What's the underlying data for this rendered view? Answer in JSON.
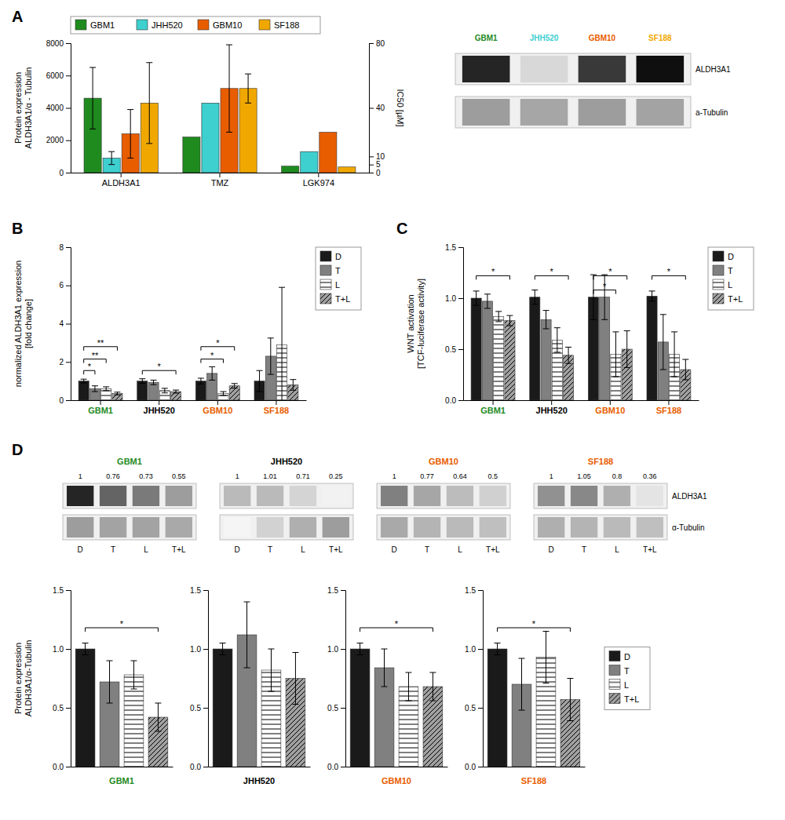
{
  "chart_data": [
    {
      "type": "bar",
      "title": "A",
      "categories": [
        "ALDH3A1",
        "TMZ",
        "LGK974"
      ],
      "series": [
        {
          "name": "GBM1",
          "color": "#1f8b1f",
          "values": [
            4600,
            2200,
            400
          ],
          "errors": [
            1900,
            0,
            0
          ]
        },
        {
          "name": "JHH520",
          "color": "#3ecfcf",
          "values": [
            900,
            4300,
            1300
          ],
          "errors": [
            400,
            0,
            0
          ]
        },
        {
          "name": "GBM10",
          "color": "#e85d00",
          "values": [
            2400,
            5200,
            2500
          ],
          "errors": [
            1500,
            2700,
            0
          ]
        },
        {
          "name": "SF188",
          "color": "#f0a800",
          "values": [
            4300,
            5200,
            350
          ],
          "errors": [
            2500,
            900,
            0
          ]
        }
      ],
      "ylim": [
        0,
        8000
      ],
      "yticks": [
        0,
        2000,
        4000,
        6000,
        8000
      ],
      "ylabel": "Protein expression\nALDH3A1/α - Tubulin",
      "y2lim": [
        0,
        80
      ],
      "y2ticks": [
        0,
        5,
        10,
        40,
        80
      ],
      "y2label": "IC50 [µM]",
      "legend": "top"
    },
    {
      "type": "blot",
      "lanes": [
        "GBM1",
        "JHH520",
        "GBM10",
        "SF188"
      ],
      "colors": [
        "#1f8b1f",
        "#3ecfcf",
        "#e85d00",
        "#f0a800"
      ],
      "row_names": [
        "ALDH3A1",
        "a-Tubulin"
      ],
      "bands": [
        [
          0.88,
          0.25,
          0.82,
          0.95
        ],
        [
          0.48,
          0.45,
          0.48,
          0.46
        ]
      ]
    },
    {
      "type": "bar",
      "title": "B",
      "categories": [
        "GBM1",
        "JHH520",
        "GBM10",
        "SF188"
      ],
      "category_colors": [
        "#1f8b1f",
        "#000000",
        "#e85d00",
        "#e85d00"
      ],
      "series": [
        {
          "name": "D",
          "color": "#1a1a1a",
          "values": [
            1.0,
            1.0,
            1.0,
            1.0
          ],
          "errors": [
            0.1,
            0.12,
            0.15,
            0.55
          ]
        },
        {
          "name": "T",
          "color": "#808080",
          "values": [
            0.6,
            0.93,
            1.4,
            2.3
          ],
          "errors": [
            0.15,
            0.12,
            0.35,
            0.95
          ]
        },
        {
          "name": "L",
          "color": "#ffffff",
          "values": [
            0.6,
            0.5,
            0.35,
            2.9
          ],
          "errors": [
            0.1,
            0.12,
            0.1,
            3.0
          ]
        },
        {
          "name": "T+L",
          "color": "#a0a0a0",
          "values": [
            0.35,
            0.45,
            0.75,
            0.8
          ],
          "errors": [
            0.07,
            0.08,
            0.12,
            0.28
          ]
        }
      ],
      "ylim": [
        0,
        8
      ],
      "yticks": [
        0,
        2,
        4,
        6,
        8
      ],
      "ylabel": "normalized ALDH3A1 expression\n[fold change]",
      "legend": "right",
      "annotations": [
        {
          "text": "*",
          "category": "GBM1",
          "from": "D",
          "to": "T",
          "y": 1.55
        },
        {
          "text": "**",
          "category": "GBM1",
          "from": "D",
          "to": "L",
          "y": 2.15
        },
        {
          "text": "**",
          "category": "GBM1",
          "from": "D",
          "to": "T+L",
          "y": 2.8
        },
        {
          "text": "*",
          "category": "JHH520",
          "from": "D",
          "to": "T+L",
          "y": 1.55
        },
        {
          "text": "*",
          "category": "GBM10",
          "from": "D",
          "to": "L",
          "y": 2.15
        },
        {
          "text": "*",
          "category": "GBM10",
          "from": "D",
          "to": "T+L",
          "y": 2.8
        }
      ]
    },
    {
      "type": "bar",
      "title": "C",
      "categories": [
        "GBM1",
        "JHH520",
        "GBM10",
        "SF188"
      ],
      "category_colors": [
        "#1f8b1f",
        "#000000",
        "#e85d00",
        "#e85d00"
      ],
      "series": [
        {
          "name": "D",
          "color": "#1a1a1a",
          "values": [
            1.0,
            1.01,
            1.01,
            1.02
          ],
          "errors": [
            0.07,
            0.07,
            0.22,
            0.05
          ]
        },
        {
          "name": "T",
          "color": "#808080",
          "values": [
            0.97,
            0.79,
            1.01,
            0.57
          ],
          "errors": [
            0.07,
            0.09,
            0.22,
            0.27
          ]
        },
        {
          "name": "L",
          "color": "#ffffff",
          "values": [
            0.82,
            0.59,
            0.45,
            0.45
          ],
          "errors": [
            0.05,
            0.12,
            0.22,
            0.22
          ]
        },
        {
          "name": "T+L",
          "color": "#a0a0a0",
          "values": [
            0.78,
            0.44,
            0.5,
            0.3
          ],
          "errors": [
            0.05,
            0.08,
            0.18,
            0.1
          ]
        }
      ],
      "ylim": [
        0,
        1.5
      ],
      "yticks": [
        {
          "value": 0,
          "label": "0.0"
        },
        0.5,
        {
          "value": 1,
          "label": "1.0"
        },
        1.5
      ],
      "ylabel": "WNT activation\n[TCF-luciferase activity]",
      "legend": "right",
      "annotations": [
        {
          "text": "*",
          "category": "GBM1",
          "from": "D",
          "to": "T+L",
          "y": 1.22
        },
        {
          "text": "*",
          "category": "JHH520",
          "from": "D",
          "to": "T+L",
          "y": 1.22
        },
        {
          "text": "*",
          "category": "GBM10",
          "from": "D",
          "to": "T+L",
          "y": 1.22
        },
        {
          "text": "*",
          "category": "SF188",
          "from": "D",
          "to": "T+L",
          "y": 1.22
        },
        {
          "text": "*",
          "category": "GBM10",
          "from": "D",
          "to": "L",
          "y": 1.08
        }
      ]
    },
    {
      "type": "blot",
      "title": "D",
      "lanes": [
        "D",
        "T",
        "L",
        "T+L"
      ],
      "row_names": [
        "ALDH3A1",
        "α-Tubulin"
      ],
      "blots": [
        {
          "name": "GBM1",
          "color": "#1f8b1f",
          "protein_values": [
            1,
            0.76,
            0.73,
            0.55
          ],
          "bands": [
            [
              0.88,
              0.68,
              0.6,
              0.48
            ],
            [
              0.48,
              0.46,
              0.46,
              0.44
            ]
          ]
        },
        {
          "name": "JHH520",
          "color": "#000000",
          "protein_values": [
            1,
            1.01,
            0.71,
            0.25
          ],
          "bands": [
            [
              0.38,
              0.38,
              0.27,
              0.1
            ],
            [
              0.08,
              0.28,
              0.42,
              0.48
            ]
          ]
        },
        {
          "name": "GBM10",
          "color": "#e85d00",
          "protein_values": [
            1,
            0.77,
            0.64,
            0.5
          ],
          "bands": [
            [
              0.58,
              0.45,
              0.37,
              0.29
            ],
            [
              0.44,
              0.4,
              0.38,
              0.36
            ]
          ]
        },
        {
          "name": "SF188",
          "color": "#e85d00",
          "protein_values": [
            1,
            1.05,
            0.8,
            0.36
          ],
          "bands": [
            [
              0.52,
              0.55,
              0.42,
              0.19
            ],
            [
              0.42,
              0.4,
              0.38,
              0.36
            ]
          ]
        }
      ]
    },
    {
      "type": "bar",
      "categories": [
        "GBM1",
        "JHH520",
        "GBM10",
        "SF188"
      ],
      "category_colors": [
        "#1f8b1f",
        "#000000",
        "#e85d00",
        "#e85d00"
      ],
      "series": [
        {
          "name": "D",
          "color": "#1a1a1a",
          "values": [
            1.0,
            1.0,
            1.0,
            1.0
          ],
          "errors": [
            0.05,
            0.05,
            0.05,
            0.05
          ]
        },
        {
          "name": "T",
          "color": "#808080",
          "values": [
            0.72,
            1.12,
            0.84,
            0.7
          ],
          "errors": [
            0.18,
            0.28,
            0.16,
            0.22
          ]
        },
        {
          "name": "L",
          "color": "#ffffff",
          "values": [
            0.78,
            0.82,
            0.68,
            0.93
          ],
          "errors": [
            0.12,
            0.18,
            0.12,
            0.22
          ]
        },
        {
          "name": "T+L",
          "color": "#a0a0a0",
          "values": [
            0.42,
            0.75,
            0.68,
            0.57
          ],
          "errors": [
            0.12,
            0.22,
            0.12,
            0.18
          ]
        }
      ],
      "ylim": [
        0,
        1.5
      ],
      "yticks": [
        {
          "value": 0,
          "label": "0.0"
        },
        0.5,
        {
          "value": 1,
          "label": "1.0"
        },
        1.5
      ],
      "ylabel": "Protein expression\nALDH3A1/α-Tubulin",
      "legend": "right",
      "annotations": [
        {
          "text": "*",
          "category": "GBM1",
          "from": "D",
          "to": "T+L",
          "y": 1.18
        },
        {
          "text": "*",
          "category": "GBM10",
          "from": "D",
          "to": "T+L",
          "y": 1.18
        },
        {
          "text": "*",
          "category": "SF188",
          "from": "D",
          "to": "T+L",
          "y": 1.18
        }
      ]
    }
  ]
}
